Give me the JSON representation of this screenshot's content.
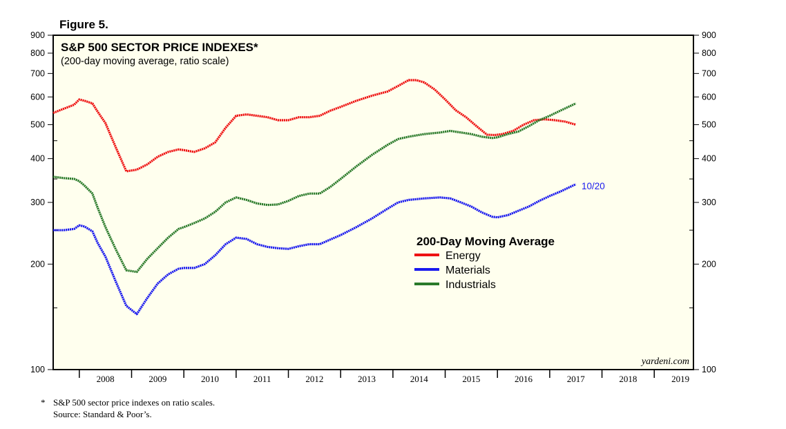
{
  "figure_label": "Figure 5.",
  "footnote": {
    "star": "*",
    "line1": "S&P 500 sector price indexes on ratio scales.",
    "line2": "Source: Standard & Poor’s."
  },
  "watermark": "yardeni.com",
  "colors": {
    "background": "#ffffee",
    "energy": "#ee1111",
    "materials": "#1a1aee",
    "industrials": "#2a7a2a",
    "end_label": "#1a1aee"
  },
  "chart_data": {
    "type": "line",
    "title": "S&P 500 SECTOR PRICE INDEXES*",
    "subtitle": "(200-day moving average, ratio scale)",
    "y_scale": "log",
    "ylim": [
      100,
      900
    ],
    "y_ticks": [
      100,
      200,
      300,
      400,
      500,
      600,
      700,
      800,
      900
    ],
    "y_minor_ticks": [
      150,
      250,
      350,
      450
    ],
    "xlim": [
      2007.5,
      2019.75
    ],
    "x_tick_labels": [
      "2008",
      "2009",
      "2010",
      "2011",
      "2012",
      "2013",
      "2014",
      "2015",
      "2016",
      "2017",
      "2018",
      "2019"
    ],
    "end_label": "10/20",
    "legend_title": "200-Day Moving Average",
    "series": [
      {
        "name": "Energy",
        "color_key": "energy",
        "x": [
          2007.5,
          2007.7,
          2007.9,
          2008.0,
          2008.1,
          2008.25,
          2008.35,
          2008.5,
          2008.7,
          2008.9,
          2009.1,
          2009.3,
          2009.5,
          2009.7,
          2009.9,
          2010.0,
          2010.2,
          2010.4,
          2010.6,
          2010.8,
          2011.0,
          2011.2,
          2011.4,
          2011.6,
          2011.8,
          2012.0,
          2012.2,
          2012.4,
          2012.6,
          2012.8,
          2013.0,
          2013.3,
          2013.6,
          2013.9,
          2014.1,
          2014.3,
          2014.45,
          2014.6,
          2014.8,
          2015.0,
          2015.2,
          2015.4,
          2015.6,
          2015.8,
          2015.95,
          2016.1,
          2016.3,
          2016.5,
          2016.7,
          2016.9,
          2017.1,
          2017.3,
          2017.5
        ],
        "values": [
          540,
          555,
          570,
          590,
          585,
          575,
          545,
          505,
          430,
          368,
          372,
          385,
          405,
          418,
          425,
          423,
          418,
          428,
          445,
          490,
          530,
          535,
          530,
          525,
          515,
          515,
          525,
          525,
          530,
          548,
          562,
          585,
          605,
          622,
          645,
          670,
          670,
          660,
          630,
          590,
          550,
          525,
          495,
          468,
          467,
          470,
          480,
          500,
          515,
          518,
          515,
          510,
          500
        ]
      },
      {
        "name": "Materials",
        "color_key": "materials",
        "x": [
          2007.5,
          2007.7,
          2007.9,
          2008.0,
          2008.1,
          2008.25,
          2008.35,
          2008.5,
          2008.7,
          2008.9,
          2009.1,
          2009.3,
          2009.5,
          2009.7,
          2009.9,
          2010.0,
          2010.2,
          2010.4,
          2010.6,
          2010.8,
          2011.0,
          2011.2,
          2011.4,
          2011.6,
          2011.8,
          2012.0,
          2012.2,
          2012.4,
          2012.6,
          2012.8,
          2013.0,
          2013.3,
          2013.6,
          2013.9,
          2014.1,
          2014.3,
          2014.6,
          2014.9,
          2015.1,
          2015.3,
          2015.5,
          2015.7,
          2015.9,
          2016.0,
          2016.2,
          2016.4,
          2016.6,
          2016.8,
          2017.0,
          2017.2,
          2017.5
        ],
        "values": [
          250,
          250,
          252,
          258,
          256,
          248,
          230,
          210,
          178,
          152,
          144,
          160,
          176,
          187,
          194,
          195,
          195,
          200,
          212,
          228,
          238,
          236,
          228,
          224,
          222,
          221,
          225,
          228,
          228,
          235,
          242,
          255,
          270,
          288,
          300,
          305,
          308,
          310,
          308,
          300,
          292,
          281,
          273,
          272,
          276,
          284,
          292,
          303,
          313,
          322,
          338
        ]
      },
      {
        "name": "Industrials",
        "color_key": "industrials",
        "x": [
          2007.5,
          2007.7,
          2007.9,
          2008.0,
          2008.1,
          2008.25,
          2008.35,
          2008.5,
          2008.7,
          2008.9,
          2009.1,
          2009.3,
          2009.5,
          2009.7,
          2009.9,
          2010.0,
          2010.2,
          2010.4,
          2010.6,
          2010.8,
          2011.0,
          2011.2,
          2011.4,
          2011.6,
          2011.8,
          2012.0,
          2012.2,
          2012.4,
          2012.6,
          2012.8,
          2013.0,
          2013.3,
          2013.6,
          2013.9,
          2014.1,
          2014.3,
          2014.6,
          2014.9,
          2015.1,
          2015.3,
          2015.5,
          2015.7,
          2015.9,
          2016.0,
          2016.2,
          2016.4,
          2016.6,
          2016.8,
          2017.0,
          2017.2,
          2017.5
        ],
        "values": [
          355,
          352,
          350,
          345,
          335,
          318,
          290,
          255,
          220,
          192,
          190,
          207,
          222,
          238,
          252,
          255,
          262,
          270,
          282,
          300,
          310,
          305,
          298,
          295,
          296,
          303,
          313,
          318,
          318,
          332,
          350,
          380,
          410,
          438,
          455,
          462,
          470,
          475,
          480,
          475,
          470,
          462,
          458,
          460,
          470,
          478,
          495,
          515,
          530,
          548,
          575
        ]
      }
    ]
  }
}
